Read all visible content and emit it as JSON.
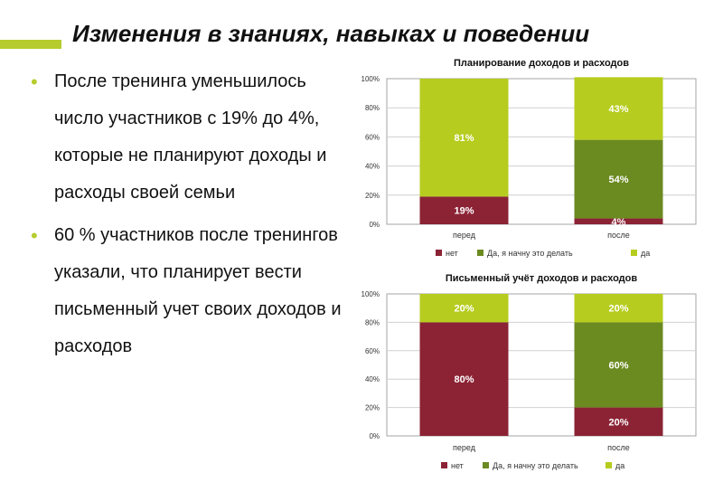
{
  "slide": {
    "title": "Изменения в знаниях, навыках и поведении",
    "accent_color": "#b6cc2e",
    "bullets": [
      {
        "text": "После тренинга уменьшилось число участников с 19% до 4%, которые не планируют доходы и расходы своей семьи"
      },
      {
        "text": "60 % участников после тренингов указали, что планирует вести письменный учет своих доходов и расходов"
      }
    ]
  },
  "chart_data": [
    {
      "type": "bar",
      "stacked": true,
      "title": "Планирование доходов и расходов",
      "categories": [
        "перед",
        "после"
      ],
      "y_ticks": [
        "0%",
        "20%",
        "40%",
        "60%",
        "80%",
        "100%"
      ],
      "ylim": [
        0,
        100
      ],
      "legend_position": "bottom",
      "series": [
        {
          "name": "нет",
          "color": "#8b2335",
          "values": [
            19,
            4
          ],
          "labels": [
            "19%",
            "4%"
          ]
        },
        {
          "name": "Да, я начну это делать",
          "color": "#6b8a20",
          "values": [
            0,
            54
          ],
          "labels": [
            "",
            "54%"
          ]
        },
        {
          "name": "да",
          "color": "#b6cc1e",
          "values": [
            81,
            43
          ],
          "labels": [
            "81%",
            "43%"
          ]
        }
      ]
    },
    {
      "type": "bar",
      "stacked": true,
      "title": "Письменный учёт доходов и расходов",
      "categories": [
        "перед",
        "после"
      ],
      "y_ticks": [
        "0%",
        "20%",
        "40%",
        "60%",
        "80%",
        "100%"
      ],
      "ylim": [
        0,
        100
      ],
      "legend_position": "bottom",
      "series": [
        {
          "name": "нет",
          "color": "#8b2335",
          "values": [
            80,
            20
          ],
          "labels": [
            "80%",
            "20%"
          ]
        },
        {
          "name": "Да, я начну это делать",
          "color": "#6b8a20",
          "values": [
            0,
            60
          ],
          "labels": [
            "",
            "60%"
          ]
        },
        {
          "name": "да",
          "color": "#b6cc1e",
          "values": [
            20,
            20
          ],
          "labels": [
            "20%",
            "20%"
          ]
        }
      ]
    }
  ]
}
